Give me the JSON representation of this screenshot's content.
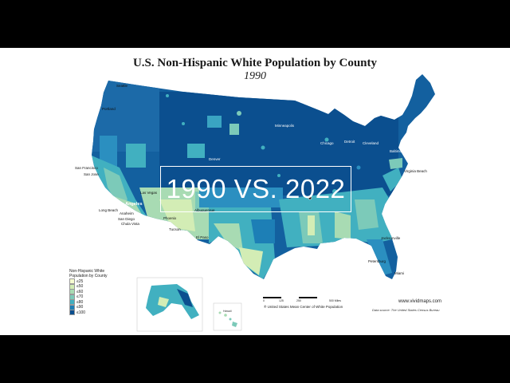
{
  "title": "U.S. Non-Hispanic White Population by County",
  "subtitle": "1990",
  "overlay_text": "1990 VS. 2022",
  "legend": {
    "title_line1": "Non-Hispanic White",
    "title_line2": "Population by County",
    "items": [
      {
        "label": "≤25",
        "color": "#f7fcd0"
      },
      {
        "label": "≤50",
        "color": "#d3edb5"
      },
      {
        "label": "≤60",
        "color": "#a8dbb3"
      },
      {
        "label": "≤70",
        "color": "#7ccab9"
      },
      {
        "label": "≤80",
        "color": "#41b0c0"
      },
      {
        "label": "≤90",
        "color": "#1d7fb6"
      },
      {
        "label": "≤100",
        "color": "#0b4f8f"
      }
    ]
  },
  "cities": {
    "seattle": "Seattle",
    "portland": "Portland",
    "san_francisco": "San Francisco",
    "san_jose": "San Jose",
    "los_angeles": "Los Angeles",
    "long_beach": "Long Beach",
    "anaheim": "Anaheim",
    "san_diego": "San Diego",
    "chula_vista": "Chula Vista",
    "las_vegas": "Las Vegas",
    "phoenix": "Phoenix",
    "tucson": "Tucson",
    "albuquerque": "Albuquerque",
    "el_paso": "El Paso",
    "denver": "Denver",
    "minneapolis": "Minneapolis",
    "chicago": "Chicago",
    "detroit": "Detroit",
    "cleveland": "Cleveland",
    "boston": "Boston",
    "new_york": "New York",
    "philadelphia": "Philadelphia",
    "baltimore": "Baltimore",
    "virginia_beach": "Virginia Beach",
    "jacksonville": "Jacksonville",
    "petersburg": "Petersburg",
    "miami": "Miami"
  },
  "scale_labels": [
    "0",
    "125",
    "250",
    "500 Miles"
  ],
  "center_of_population": "® United States Mean Center of White Population",
  "website": "www.vividmaps.com",
  "source": "Data source: The United States Census Bureau",
  "inset_labels": {
    "hawaii": "Hawaii"
  }
}
